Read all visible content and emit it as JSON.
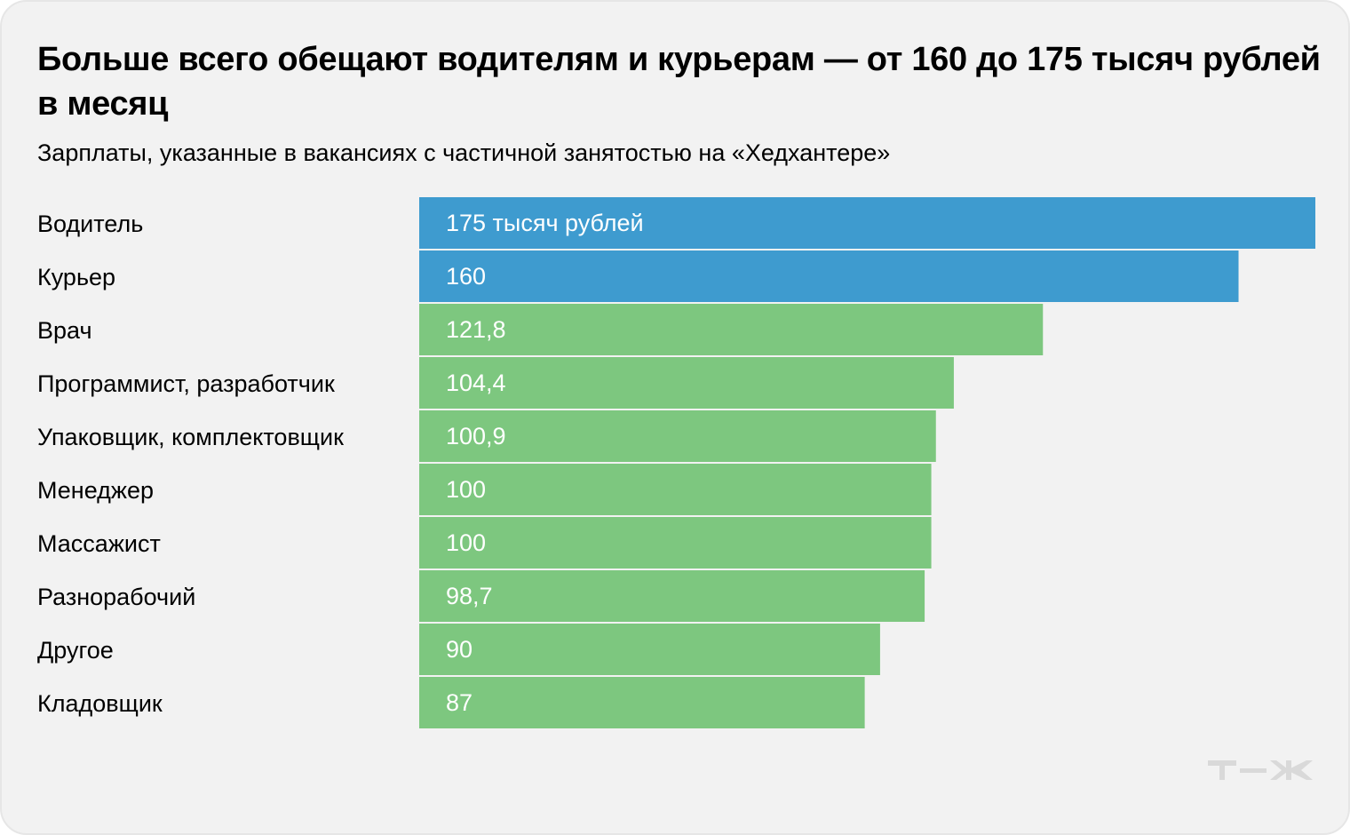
{
  "header": {
    "title": "Больше всего обещают водителям и курьерам — от 160 до 175 тысяч рублей в месяц",
    "subtitle": "Зарплаты, указанные в вакансиях с частичной занятостью на «Хедхантере»"
  },
  "brand": {
    "logo_text": "Т—Ж",
    "logo_color": "#d9d9d9"
  },
  "colors": {
    "highlight": "#3e9bcf",
    "default": "#7dc77f"
  },
  "chart_data": {
    "type": "bar",
    "orientation": "horizontal",
    "title": "Больше всего обещают водителям и курьерам — от 160 до 175 тысяч рублей в месяц",
    "subtitle": "Зарплаты, указанные в вакансиях с частичной занятостью на «Хедхантере»",
    "xlabel": "",
    "ylabel": "",
    "xlim": [
      0,
      175
    ],
    "grid": false,
    "legend": "none",
    "categories": [
      "Водитель",
      "Курьер",
      "Врач",
      "Программист, разработчик",
      "Упаковщик, комплектовщик",
      "Менеджер",
      "Массажист",
      "Разнорабочий",
      "Другое",
      "Кладовщик"
    ],
    "values": [
      175,
      160,
      121.8,
      104.4,
      100.9,
      100,
      100,
      98.7,
      90,
      87
    ],
    "value_labels": [
      "175 тысяч рублей",
      "160",
      "121,8",
      "104,4",
      "100,9",
      "100",
      "100",
      "98,7",
      "90",
      "87"
    ],
    "highlighted": [
      true,
      true,
      false,
      false,
      false,
      false,
      false,
      false,
      false,
      false
    ]
  }
}
